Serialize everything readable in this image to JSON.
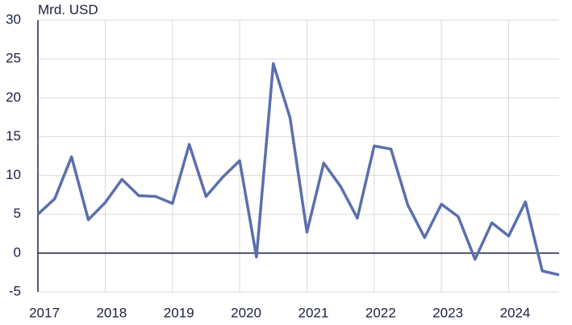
{
  "chart_data": {
    "type": "line",
    "y_label": "Mrd. USD",
    "x": [
      2017,
      2017.25,
      2017.5,
      2017.75,
      2018,
      2018.25,
      2018.5,
      2018.75,
      2019,
      2019.25,
      2019.5,
      2019.75,
      2020,
      2020.25,
      2020.5,
      2020.75,
      2021,
      2021.25,
      2021.5,
      2021.75,
      2022,
      2022.25,
      2022.5,
      2022.75,
      2023,
      2023.25,
      2023.5,
      2023.75,
      2024,
      2024.25,
      2024.5,
      2024.75
    ],
    "series": [
      {
        "color": "#5b6fae",
        "values": [
          5.0,
          7.0,
          12.4,
          4.3,
          6.5,
          9.5,
          7.4,
          7.3,
          6.4,
          14.0,
          7.3,
          9.8,
          11.9,
          -0.5,
          24.4,
          17.4,
          2.7,
          11.6,
          8.6,
          4.5,
          13.8,
          13.4,
          6.2,
          2.0,
          6.3,
          4.7,
          -0.8,
          3.9,
          2.2,
          6.6,
          -2.3,
          -2.8
        ]
      }
    ],
    "xlim": [
      2017,
      2024.75
    ],
    "xticks": [
      2017,
      2018,
      2019,
      2020,
      2021,
      2022,
      2023,
      2024
    ],
    "ylim": [
      -5,
      30
    ],
    "yticks": [
      -5,
      0,
      5,
      10,
      15,
      20,
      25,
      30
    ],
    "grid": true
  }
}
